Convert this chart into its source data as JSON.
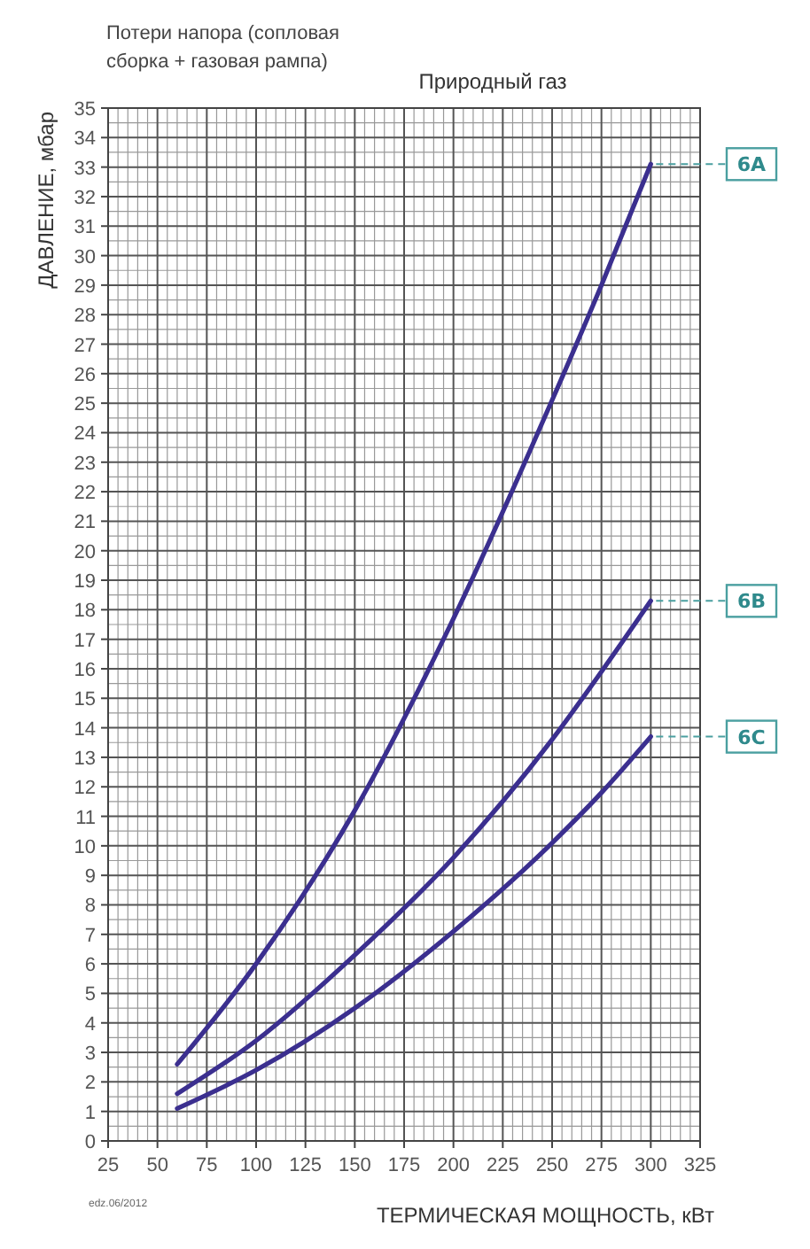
{
  "chart_data": {
    "type": "line",
    "title": "Природный газ",
    "xlabel": "ТЕРМИЧЕСКАЯ МОЩНОСТЬ, кВт",
    "ylabel": "ДАВЛЕНИЕ, мбар",
    "annotations": [
      "Потери напора (сопловая сборка + газовая рампа)",
      "edz.06/2012"
    ],
    "xlim": [
      25,
      325
    ],
    "xticks": [
      25,
      50,
      75,
      100,
      125,
      150,
      175,
      200,
      225,
      250,
      275,
      300,
      325
    ],
    "ylim": [
      0,
      35
    ],
    "yticks": [
      0,
      1,
      2,
      3,
      4,
      5,
      6,
      7,
      8,
      9,
      10,
      11,
      12,
      13,
      14,
      15,
      16,
      17,
      18,
      19,
      20,
      21,
      22,
      23,
      24,
      25,
      26,
      27,
      28,
      29,
      30,
      31,
      32,
      33,
      34,
      35
    ],
    "grid": true,
    "marker": "none",
    "line_style": "solid",
    "x": [
      60,
      100,
      150,
      200,
      250,
      275,
      300
    ],
    "series": [
      {
        "name": "6A",
        "color": "#3b2f8f",
        "values": [
          2.6,
          6.0,
          11.2,
          17.7,
          25.1,
          29.0,
          33.1
        ]
      },
      {
        "name": "6B",
        "color": "#3b2f8f",
        "values": [
          1.6,
          3.4,
          6.3,
          9.6,
          13.6,
          15.9,
          18.3
        ]
      },
      {
        "name": "6C",
        "color": "#3b2f8f",
        "values": [
          1.1,
          2.4,
          4.5,
          7.1,
          10.1,
          11.8,
          13.7
        ]
      }
    ]
  }
}
